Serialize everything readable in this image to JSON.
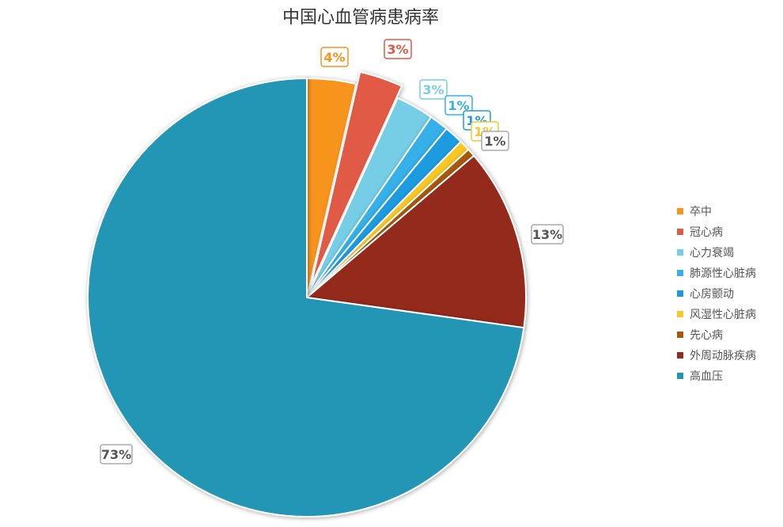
{
  "chart_data": {
    "type": "pie",
    "title": "中国心血管病患病率",
    "legend_position": "right",
    "slices": [
      {
        "name": "卒中",
        "value": 3.6,
        "label": "4%",
        "color": "#F7941D"
      },
      {
        "name": "冠心病",
        "value": 3.2,
        "label": "3%",
        "color": "#E15A45",
        "exploded": true
      },
      {
        "name": "心力衰竭",
        "value": 2.8,
        "label": "3%",
        "color": "#76CDE6"
      },
      {
        "name": "肺源性心脏病",
        "value": 1.4,
        "label": "1%",
        "color": "#36B0E8"
      },
      {
        "name": "心房颤动",
        "value": 1.4,
        "label": "1%",
        "color": "#1A9BE0"
      },
      {
        "name": "风湿性心脏病",
        "value": 0.8,
        "label": "1%",
        "color": "#F9C824"
      },
      {
        "name": "先心病",
        "value": 0.6,
        "label": "1%",
        "color": "#A8580D"
      },
      {
        "name": "外周动脉疾病",
        "value": 13.4,
        "label": "13%",
        "color": "#942A1B"
      },
      {
        "name": "高血压",
        "value": 72.8,
        "label": "73%",
        "color": "#2196B4"
      }
    ]
  }
}
